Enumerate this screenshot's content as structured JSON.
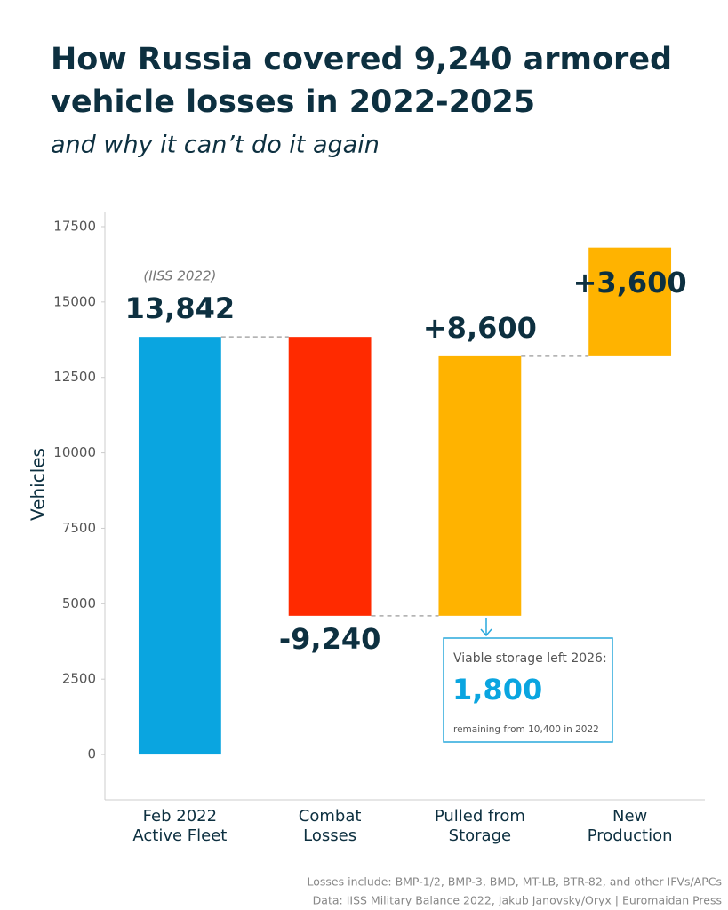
{
  "chart_data": {
    "type": "waterfall",
    "title": [
      "How Russia covered 9,240 armored",
      "vehicle losses in 2022-2025"
    ],
    "subtitle": "and why it can’t do it again",
    "ylabel": "Vehicles",
    "categories": [
      "Feb 2022\nActive Fleet",
      "Combat\nLosses",
      "Pulled from\nStorage",
      "New\nProduction"
    ],
    "values": [
      13842,
      -9240,
      8600,
      3600
    ],
    "value_labels": [
      "13,842",
      "-9,240",
      "+8,600",
      "+3,600"
    ],
    "colors": [
      "#0aa5e0",
      "#ff2a00",
      "#ffb300",
      "#ffb300"
    ],
    "ylim": [
      -1500,
      18000
    ],
    "yticks": [
      0,
      2500,
      5000,
      7500,
      10000,
      12500,
      15000,
      17500
    ],
    "annotations": {
      "source_note": "(IISS 2022)",
      "callout": {
        "heading": "Viable storage left 2026:",
        "value": "1,800",
        "note": "remaining from 10,400 in 2022"
      }
    },
    "footnotes": [
      "Losses include: BMP-1/2, BMP-3, BMD, MT-LB, BTR-82, and other IFVs/APCs",
      "Data: IISS Military Balance 2022, Jakub Janovsky/Oryx | Euromaidan Press"
    ]
  }
}
